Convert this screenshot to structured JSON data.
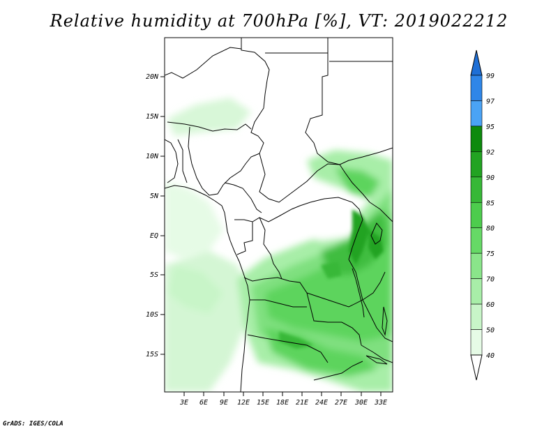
{
  "title": "Relative humidity at 700hPa [%], VT: 2019022212",
  "credit": "GrADS: IGES/COLA",
  "map": {
    "lat_labels": [
      "20N",
      "15N",
      "10N",
      "5N",
      "EQ",
      "5S",
      "10S",
      "15S"
    ],
    "lon_labels": [
      "3E",
      "6E",
      "9E",
      "12E",
      "15E",
      "18E",
      "21E",
      "24E",
      "27E",
      "30E",
      "33E"
    ]
  },
  "colorbar": {
    "labels": [
      "99",
      "97",
      "95",
      "92",
      "90",
      "85",
      "80",
      "75",
      "70",
      "60",
      "50",
      "40"
    ],
    "colors": [
      "#1e6fd6",
      "#2f86e8",
      "#4aa3f5",
      "#0d8a0d",
      "#22a322",
      "#37b837",
      "#4dcc4d",
      "#66d966",
      "#8ae58a",
      "#a8eea8",
      "#c8f5c8",
      "#e6fbe6"
    ],
    "top_color": "#1e6fd6"
  }
}
